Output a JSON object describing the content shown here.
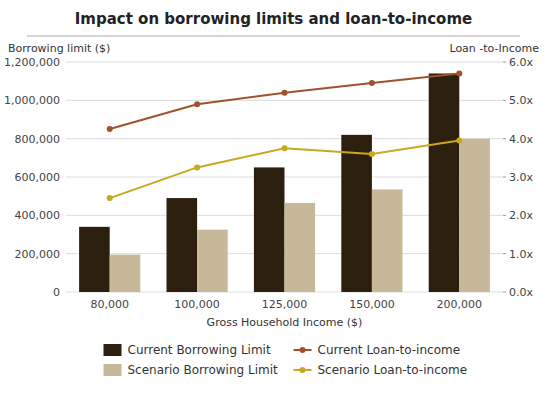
{
  "chart_data": {
    "type": "bar",
    "title": "Impact on borrowing limits and loan-to-income",
    "xlabel": "Gross Household Income ($)",
    "ylabel": "Borrowing limit ($)",
    "y2label": "Loan -to-Income",
    "categories": [
      "80,000",
      "100,000",
      "125,000",
      "150,000",
      "200,000"
    ],
    "series": [
      {
        "name": "Current Borrowing Limit",
        "type": "bar",
        "color": "#2d1f0e",
        "values": [
          340000,
          490000,
          650000,
          820000,
          1140000
        ]
      },
      {
        "name": "Scenario Borrowing Limit",
        "type": "bar",
        "color": "#c8b89a",
        "values": [
          195000,
          325000,
          465000,
          535000,
          800000
        ]
      },
      {
        "name": "Current Loan-to-income",
        "type": "line",
        "axis": "y2",
        "marker": "circle",
        "color": "#a0522d",
        "values": [
          4.25,
          4.9,
          5.2,
          5.45,
          5.7
        ]
      },
      {
        "name": "Scenario Loan-to-income",
        "type": "line",
        "axis": "y2",
        "marker": "circle",
        "color": "#c8a820",
        "values": [
          2.45,
          3.25,
          3.75,
          3.6,
          3.95
        ]
      }
    ],
    "ylim": [
      0,
      1200000
    ],
    "yticks": [
      0,
      {
        "value": 200000,
        "label": "200,000"
      },
      {
        "value": 400000,
        "label": "400,000"
      },
      {
        "value": 600000,
        "label": "600,000"
      },
      {
        "value": 800000,
        "label": "800,000"
      },
      {
        "value": 1000000,
        "label": "1,000,000"
      },
      {
        "value": 1200000,
        "label": "1,200,000"
      }
    ],
    "y2lim": [
      0.0,
      6.0
    ],
    "y2ticks": [
      {
        "value": 0.0,
        "label": "0.0x"
      },
      {
        "value": 1.0,
        "label": "1.0x"
      },
      {
        "value": 2.0,
        "label": "2.0x"
      },
      {
        "value": 3.0,
        "label": "3.0x"
      },
      {
        "value": 4.0,
        "label": "4.0x"
      },
      {
        "value": 5.0,
        "label": "5.0x"
      },
      {
        "value": 6.0,
        "label": "6.0x"
      }
    ],
    "grid": true,
    "legend": "bottom"
  }
}
